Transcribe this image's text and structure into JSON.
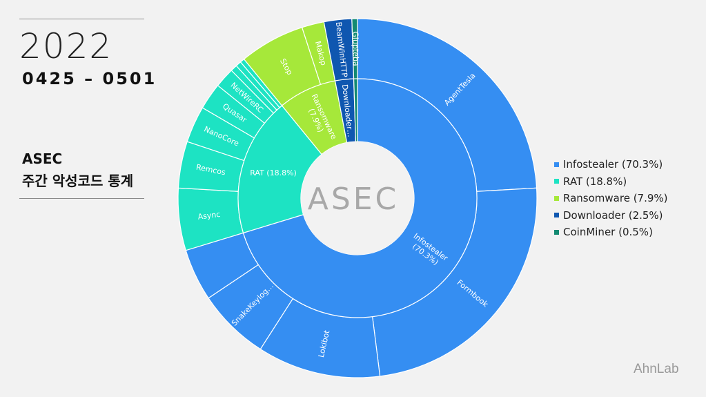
{
  "header": {
    "year": "2022",
    "date_range": "0425 – 0501",
    "title_line1": "ASEC",
    "title_line2": "주간 악성코드 통계"
  },
  "center_logo": "ASEC",
  "brand": "AhnLab",
  "chart_data": {
    "type": "sunburst",
    "inner": [
      {
        "name": "Infostealer",
        "label": "Infostealer\n(70.3%)",
        "value": 70.3,
        "color": "#358ef2"
      },
      {
        "name": "RAT",
        "label": "RAT (18.8%)",
        "value": 18.8,
        "color": "#1de3c3"
      },
      {
        "name": "Ransomware",
        "label": "Ransomware\n(7.9%)",
        "value": 7.9,
        "color": "#a6e83a"
      },
      {
        "name": "Downloader",
        "label": "Downloader…",
        "value": 2.5,
        "color": "#0f57b0"
      },
      {
        "name": "CoinMiner",
        "label": "",
        "value": 0.5,
        "color": "#138a72"
      }
    ],
    "outer": [
      {
        "name": "AgentTesla",
        "parent": "Infostealer",
        "value": 24.1
      },
      {
        "name": "Formbook",
        "parent": "Infostealer",
        "value": 23.9
      },
      {
        "name": "Lokibot",
        "parent": "Infostealer",
        "value": 11.1
      },
      {
        "name": "SnakeKeylog…",
        "parent": "Infostealer",
        "value": 6.5
      },
      {
        "name": "",
        "parent": "Infostealer",
        "value": 4.7
      },
      {
        "name": "Async",
        "parent": "RAT",
        "value": 5.6
      },
      {
        "name": "Remcos",
        "parent": "RAT",
        "value": 4.2
      },
      {
        "name": "NanoCore",
        "parent": "RAT",
        "value": 3.3
      },
      {
        "name": "Quasar",
        "parent": "RAT",
        "value": 2.4
      },
      {
        "name": "NetWireRC",
        "parent": "RAT",
        "value": 1.8
      },
      {
        "name": "",
        "parent": "RAT",
        "value": 0.6
      },
      {
        "name": "",
        "parent": "RAT",
        "value": 0.5
      },
      {
        "name": "",
        "parent": "RAT",
        "value": 0.4
      },
      {
        "name": "Stop",
        "parent": "Ransomware",
        "value": 5.9
      },
      {
        "name": "Makop",
        "parent": "Ransomware",
        "value": 2.0
      },
      {
        "name": "BeamWinHTTP",
        "parent": "Downloader",
        "value": 2.5
      },
      {
        "name": "Glupteba",
        "parent": "CoinMiner",
        "value": 0.5
      }
    ],
    "legend": [
      {
        "label": "Infostealer (70.3%)",
        "color": "#358ef2"
      },
      {
        "label": "RAT (18.8%)",
        "color": "#1de3c3"
      },
      {
        "label": "Ransomware (7.9%)",
        "color": "#a6e83a"
      },
      {
        "label": "Downloader (2.5%)",
        "color": "#0f57b0"
      },
      {
        "label": "CoinMiner (0.5%)",
        "color": "#138a72"
      }
    ]
  }
}
